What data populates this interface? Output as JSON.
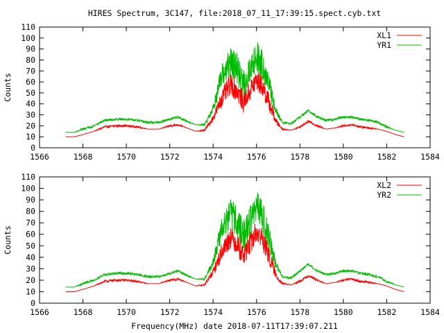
{
  "figure": {
    "title": "HIRES Spectrum, 3C147, file:2018_07_11_17:39:15.spect.cyb.txt",
    "xlabel": "Frequency(MHz) date 2018-07-11T17:39:07.211"
  },
  "colors": {
    "red": "#ff0000",
    "green": "#00bb00"
  },
  "chart_data": [
    {
      "type": "line",
      "ylabel": "Counts",
      "xlim": [
        1566,
        1584
      ],
      "ylim": [
        0,
        110
      ],
      "x_ticks": [
        1566,
        1568,
        1570,
        1572,
        1574,
        1576,
        1578,
        1580,
        1582,
        1584
      ],
      "y_ticks": [
        0,
        10,
        20,
        30,
        40,
        50,
        60,
        70,
        80,
        90,
        100,
        110
      ],
      "grid": false,
      "legend": "top-right",
      "series": [
        {
          "name": "XL1",
          "color": "#ff0000",
          "x": [
            1567.2,
            1567.6,
            1568.0,
            1568.5,
            1569.0,
            1569.5,
            1570.0,
            1570.5,
            1571.0,
            1571.5,
            1572.0,
            1572.4,
            1572.8,
            1573.2,
            1573.6,
            1574.0,
            1574.4,
            1574.8,
            1575.1,
            1575.4,
            1575.7,
            1576.0,
            1576.3,
            1576.6,
            1576.9,
            1577.2,
            1577.6,
            1578.0,
            1578.4,
            1578.8,
            1579.2,
            1579.6,
            1580.0,
            1580.4,
            1580.8,
            1581.2,
            1581.6,
            1582.0,
            1582.4,
            1582.8
          ],
          "values": [
            10,
            10,
            12,
            15,
            19,
            20,
            20,
            19,
            17,
            17,
            20,
            21,
            18,
            15,
            16,
            27,
            45,
            58,
            52,
            42,
            52,
            62,
            55,
            40,
            24,
            17,
            16,
            19,
            24,
            20,
            17,
            18,
            20,
            21,
            19,
            18,
            17,
            15,
            12,
            10
          ],
          "noise": [
            0,
            0,
            0,
            0,
            1,
            1,
            1,
            1,
            0,
            0,
            1,
            1,
            0,
            0,
            1,
            3,
            8,
            10,
            10,
            10,
            10,
            10,
            10,
            8,
            3,
            1,
            0,
            1,
            1,
            1,
            0,
            0,
            1,
            1,
            1,
            1,
            0,
            0,
            0,
            0
          ]
        },
        {
          "name": "YR1",
          "color": "#00bb00",
          "x": [
            1567.2,
            1567.6,
            1568.0,
            1568.5,
            1569.0,
            1569.5,
            1570.0,
            1570.5,
            1571.0,
            1571.5,
            1572.0,
            1572.4,
            1572.8,
            1573.2,
            1573.6,
            1574.0,
            1574.4,
            1574.8,
            1575.1,
            1575.4,
            1575.7,
            1576.0,
            1576.3,
            1576.6,
            1576.9,
            1577.2,
            1577.6,
            1578.0,
            1578.4,
            1578.8,
            1579.2,
            1579.6,
            1580.0,
            1580.4,
            1580.8,
            1581.2,
            1581.6,
            1582.0,
            1582.4,
            1582.8
          ],
          "values": [
            14,
            14,
            17,
            20,
            25,
            26,
            26,
            25,
            23,
            23,
            26,
            28,
            24,
            21,
            21,
            36,
            65,
            78,
            72,
            58,
            72,
            84,
            75,
            55,
            33,
            23,
            22,
            28,
            34,
            28,
            25,
            26,
            28,
            28,
            26,
            25,
            23,
            19,
            16,
            14
          ],
          "noise": [
            0,
            0,
            1,
            1,
            1,
            1,
            1,
            1,
            1,
            1,
            1,
            1,
            1,
            0,
            1,
            4,
            11,
            14,
            14,
            14,
            14,
            14,
            14,
            11,
            4,
            1,
            1,
            1,
            1,
            1,
            1,
            1,
            1,
            1,
            1,
            1,
            1,
            1,
            0,
            0
          ]
        }
      ]
    },
    {
      "type": "line",
      "ylabel": "Counts",
      "xlim": [
        1566,
        1584
      ],
      "ylim": [
        0,
        110
      ],
      "x_ticks": [
        1566,
        1568,
        1570,
        1572,
        1574,
        1576,
        1578,
        1580,
        1582,
        1584
      ],
      "y_ticks": [
        0,
        10,
        20,
        30,
        40,
        50,
        60,
        70,
        80,
        90,
        100,
        110
      ],
      "grid": false,
      "legend": "top-right",
      "series": [
        {
          "name": "XL2",
          "color": "#ff0000",
          "x": [
            1567.2,
            1567.6,
            1568.0,
            1568.5,
            1569.0,
            1569.5,
            1570.0,
            1570.5,
            1571.0,
            1571.5,
            1572.0,
            1572.4,
            1572.8,
            1573.2,
            1573.6,
            1574.0,
            1574.4,
            1574.8,
            1575.1,
            1575.4,
            1575.7,
            1576.0,
            1576.3,
            1576.6,
            1576.9,
            1577.2,
            1577.6,
            1578.0,
            1578.4,
            1578.8,
            1579.2,
            1579.6,
            1580.0,
            1580.4,
            1580.8,
            1581.2,
            1581.6,
            1582.0,
            1582.4,
            1582.8
          ],
          "values": [
            10,
            10,
            12,
            15,
            19,
            20,
            20,
            19,
            17,
            17,
            20,
            21,
            18,
            15,
            16,
            27,
            45,
            58,
            52,
            42,
            52,
            62,
            55,
            40,
            24,
            17,
            16,
            19,
            24,
            20,
            17,
            18,
            20,
            21,
            19,
            18,
            17,
            15,
            12,
            10
          ],
          "noise": [
            0,
            0,
            0,
            0,
            1,
            1,
            1,
            1,
            0,
            0,
            1,
            1,
            0,
            0,
            1,
            3,
            8,
            10,
            10,
            10,
            10,
            10,
            10,
            8,
            3,
            1,
            0,
            1,
            1,
            1,
            0,
            0,
            1,
            1,
            1,
            1,
            0,
            0,
            0,
            0
          ]
        },
        {
          "name": "YR2",
          "color": "#00bb00",
          "x": [
            1567.2,
            1567.6,
            1568.0,
            1568.5,
            1569.0,
            1569.5,
            1570.0,
            1570.5,
            1571.0,
            1571.5,
            1572.0,
            1572.4,
            1572.8,
            1573.2,
            1573.6,
            1574.0,
            1574.4,
            1574.8,
            1575.1,
            1575.4,
            1575.7,
            1576.0,
            1576.3,
            1576.6,
            1576.9,
            1577.2,
            1577.6,
            1578.0,
            1578.4,
            1578.8,
            1579.2,
            1579.6,
            1580.0,
            1580.4,
            1580.8,
            1581.2,
            1581.6,
            1582.0,
            1582.4,
            1582.8
          ],
          "values": [
            14,
            14,
            17,
            20,
            25,
            26,
            26,
            25,
            23,
            23,
            26,
            28,
            24,
            21,
            21,
            36,
            65,
            78,
            72,
            58,
            72,
            84,
            75,
            55,
            33,
            23,
            22,
            28,
            34,
            28,
            25,
            26,
            28,
            28,
            26,
            25,
            23,
            19,
            16,
            14
          ],
          "noise": [
            0,
            0,
            1,
            1,
            1,
            1,
            1,
            1,
            1,
            1,
            1,
            1,
            1,
            0,
            1,
            4,
            11,
            14,
            14,
            14,
            14,
            14,
            14,
            11,
            4,
            1,
            1,
            1,
            1,
            1,
            1,
            1,
            1,
            1,
            1,
            1,
            1,
            1,
            0,
            0
          ]
        }
      ]
    }
  ]
}
